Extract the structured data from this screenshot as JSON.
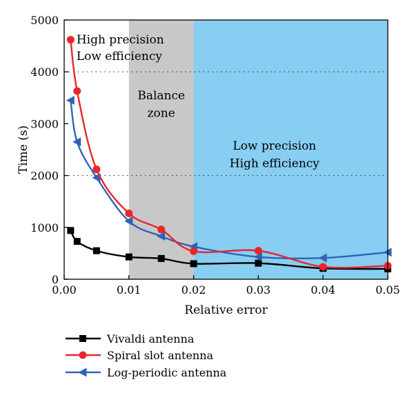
{
  "chart_data": {
    "type": "line",
    "xlabel": "Relative error",
    "ylabel": "Time (s)",
    "xlim": [
      0,
      0.05
    ],
    "ylim": [
      0,
      5000
    ],
    "xticks": [
      0,
      0.01,
      0.02,
      0.03,
      0.04,
      0.05
    ],
    "xtick_labels": [
      "0.00",
      "0.01",
      "0.02",
      "0.03",
      "0.04",
      "0.05"
    ],
    "yticks": [
      0,
      1000,
      2000,
      3000,
      4000,
      5000
    ],
    "ytick_labels": [
      "0",
      "1000",
      "2000",
      "3000",
      "4000",
      "5000"
    ],
    "reference_lines_y": [
      2000,
      4000
    ],
    "regions": [
      {
        "x_start": 0.01,
        "x_end": 0.02,
        "color": "#c8c8c8",
        "label_lines": [
          "Balance",
          "zone"
        ],
        "label_x": 0.015,
        "label_y": [
          3470,
          3130
        ]
      },
      {
        "x_start": 0.02,
        "x_end": 0.05,
        "color": "#88cdf2",
        "label_lines": [
          "Low precision",
          "High efficiency"
        ],
        "label_x": 0.0325,
        "label_y": [
          2500,
          2160
        ]
      }
    ],
    "annotations": [
      {
        "lines": [
          "High precision",
          "Low efficiency"
        ],
        "x": 0.0019,
        "y": [
          4550,
          4230
        ]
      }
    ],
    "legend_position": "below",
    "series": [
      {
        "name": "Vivaldi antenna",
        "color": "#000000",
        "marker": "square",
        "x": [
          0.001,
          0.002,
          0.005,
          0.01,
          0.015,
          0.02,
          0.03,
          0.04,
          0.05
        ],
        "y": [
          940,
          730,
          550,
          430,
          400,
          300,
          310,
          210,
          200
        ]
      },
      {
        "name": "Spiral slot antenna",
        "color": "#e8262b",
        "marker": "circle",
        "x": [
          0.001,
          0.002,
          0.005,
          0.01,
          0.015,
          0.02,
          0.03,
          0.04,
          0.05
        ],
        "y": [
          4620,
          3630,
          2120,
          1270,
          960,
          540,
          550,
          240,
          260
        ]
      },
      {
        "name": "Log-periodic antenna",
        "color": "#2f63b5",
        "marker": "triangle-left",
        "x": [
          0.001,
          0.002,
          0.005,
          0.01,
          0.015,
          0.02,
          0.03,
          0.04,
          0.05
        ],
        "y": [
          3450,
          2650,
          1960,
          1120,
          830,
          630,
          430,
          410,
          520
        ]
      }
    ]
  }
}
